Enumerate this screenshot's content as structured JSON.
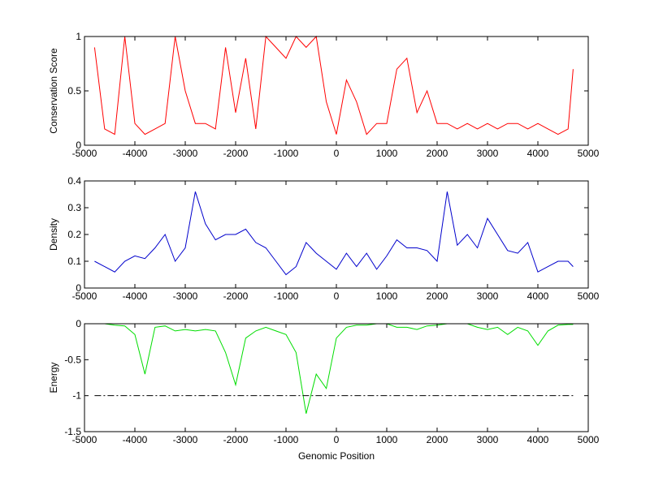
{
  "chart_data": [
    {
      "type": "line",
      "ylabel": "Conservation Score",
      "x": [
        -4800,
        -4600,
        -4400,
        -4200,
        -4000,
        -3800,
        -3600,
        -3400,
        -3200,
        -3000,
        -2800,
        -2600,
        -2400,
        -2200,
        -2000,
        -1800,
        -1600,
        -1400,
        -1200,
        -1000,
        -800,
        -600,
        -400,
        -200,
        0,
        200,
        400,
        600,
        800,
        1000,
        1200,
        1400,
        1600,
        1800,
        2000,
        2200,
        2400,
        2600,
        2800,
        3000,
        3200,
        3400,
        3600,
        3800,
        4000,
        4200,
        4400,
        4600,
        4700
      ],
      "series": [
        {
          "color": "#ff0000",
          "values": [
            0.9,
            0.15,
            0.1,
            1,
            0.2,
            0.1,
            0.15,
            0.2,
            1,
            0.5,
            0.2,
            0.2,
            0.15,
            0.9,
            0.3,
            0.8,
            0.15,
            1,
            0.9,
            0.8,
            1,
            0.9,
            1,
            0.4,
            0.1,
            0.6,
            0.4,
            0.1,
            0.2,
            0.2,
            0.7,
            0.8,
            0.3,
            0.5,
            0.2,
            0.2,
            0.15,
            0.2,
            0.15,
            0.2,
            0.15,
            0.2,
            0.2,
            0.15,
            0.2,
            0.15,
            0.1,
            0.15,
            0.7
          ]
        }
      ],
      "xlim": [
        -5000,
        5000
      ],
      "xticks": [
        -5000,
        -4000,
        -3000,
        -2000,
        -1000,
        0,
        1000,
        2000,
        3000,
        4000,
        5000
      ],
      "ylim": [
        0,
        1
      ],
      "yticks": [
        0,
        0.5,
        1
      ]
    },
    {
      "type": "line",
      "ylabel": "Density",
      "x": [
        -4800,
        -4600,
        -4400,
        -4200,
        -4000,
        -3800,
        -3600,
        -3400,
        -3200,
        -3000,
        -2800,
        -2600,
        -2400,
        -2200,
        -2000,
        -1800,
        -1600,
        -1400,
        -1200,
        -1000,
        -800,
        -600,
        -400,
        -200,
        0,
        200,
        400,
        600,
        800,
        1000,
        1200,
        1400,
        1600,
        1800,
        2000,
        2200,
        2400,
        2600,
        2800,
        3000,
        3200,
        3400,
        3600,
        3800,
        4000,
        4200,
        4400,
        4600,
        4700
      ],
      "series": [
        {
          "color": "#0000cc",
          "values": [
            0.1,
            0.08,
            0.06,
            0.1,
            0.12,
            0.11,
            0.15,
            0.2,
            0.1,
            0.15,
            0.36,
            0.24,
            0.18,
            0.2,
            0.2,
            0.22,
            0.17,
            0.15,
            0.1,
            0.05,
            0.08,
            0.17,
            0.13,
            0.1,
            0.07,
            0.13,
            0.08,
            0.13,
            0.07,
            0.12,
            0.18,
            0.15,
            0.15,
            0.14,
            0.1,
            0.36,
            0.16,
            0.2,
            0.15,
            0.26,
            0.2,
            0.14,
            0.13,
            0.17,
            0.06,
            0.08,
            0.1,
            0.1,
            0.08
          ]
        }
      ],
      "xlim": [
        -5000,
        5000
      ],
      "xticks": [
        -5000,
        -4000,
        -3000,
        -2000,
        -1000,
        0,
        1000,
        2000,
        3000,
        4000,
        5000
      ],
      "ylim": [
        0,
        0.4
      ],
      "yticks": [
        0,
        0.1,
        0.2,
        0.3,
        0.4
      ]
    },
    {
      "type": "line",
      "ylabel": "Energy",
      "xlabel": "Genomic Position",
      "x": [
        -4800,
        -4600,
        -4400,
        -4200,
        -4000,
        -3800,
        -3600,
        -3400,
        -3200,
        -3000,
        -2800,
        -2600,
        -2400,
        -2200,
        -2000,
        -1800,
        -1600,
        -1400,
        -1200,
        -1000,
        -800,
        -600,
        -400,
        -200,
        0,
        200,
        400,
        600,
        800,
        1000,
        1200,
        1400,
        1600,
        1800,
        2000,
        2200,
        2400,
        2600,
        2800,
        3000,
        3200,
        3400,
        3600,
        3800,
        4000,
        4200,
        4400,
        4600,
        4700
      ],
      "series": [
        {
          "color": "#00dd00",
          "values": [
            0,
            0,
            -0.02,
            -0.03,
            -0.15,
            -0.7,
            -0.05,
            -0.03,
            -0.1,
            -0.08,
            -0.1,
            -0.08,
            -0.1,
            -0.4,
            -0.85,
            -0.2,
            -0.1,
            -0.05,
            -0.1,
            -0.15,
            -0.4,
            -1.25,
            -0.7,
            -0.9,
            -0.2,
            -0.05,
            -0.02,
            -0.02,
            0,
            0,
            -0.05,
            -0.05,
            -0.08,
            -0.03,
            -0.02,
            0,
            0,
            0,
            -0.05,
            -0.08,
            -0.05,
            -0.15,
            -0.05,
            -0.1,
            -0.3,
            -0.1,
            -0.02,
            -0.01,
            -0.01
          ]
        }
      ],
      "hline": -1,
      "xlim": [
        -5000,
        5000
      ],
      "xticks": [
        -5000,
        -4000,
        -3000,
        -2000,
        -1000,
        0,
        1000,
        2000,
        3000,
        4000,
        5000
      ],
      "ylim": [
        -1.5,
        0
      ],
      "yticks": [
        -1.5,
        -1,
        -0.5,
        0
      ]
    }
  ]
}
